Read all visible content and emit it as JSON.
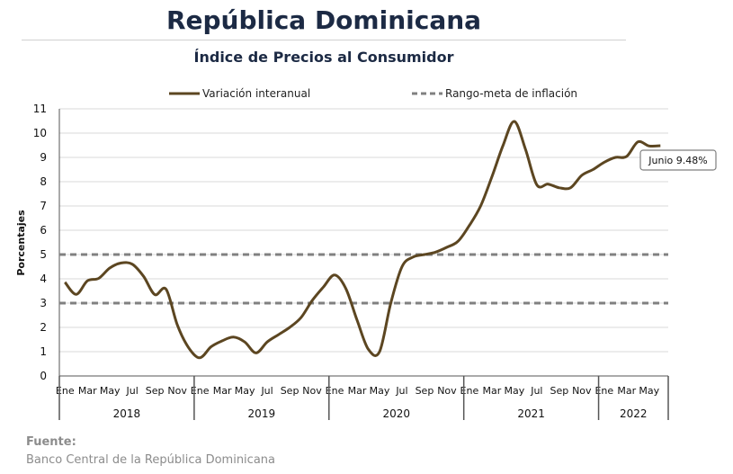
{
  "title": "República Dominicana",
  "subtitle": "Índice de Precios al Consumidor",
  "source_label": "Fuente:",
  "source_text": "Banco Central de la República Dominicana",
  "colors": {
    "line": "#5c4621",
    "target": "#808080",
    "grid": "#d9d9d9",
    "title": "#1c2a44"
  },
  "chart_data": {
    "type": "line",
    "ylabel": "Porcentajes",
    "ylim": [
      0,
      11
    ],
    "yticks": [
      0,
      1,
      2,
      3,
      4,
      5,
      6,
      7,
      8,
      9,
      10,
      11
    ],
    "grid": true,
    "legend_position": "top",
    "month_labels": [
      "Ene",
      "Mar",
      "May",
      "Jul",
      "Sep",
      "Nov"
    ],
    "years": [
      "2018",
      "2019",
      "2020",
      "2021",
      "2022"
    ],
    "series": [
      {
        "name": "Variación interanual",
        "values": [
          3.86,
          3.36,
          3.92,
          4.02,
          4.45,
          4.65,
          4.6,
          4.1,
          3.35,
          3.57,
          2.1,
          1.17,
          0.75,
          1.2,
          1.45,
          1.6,
          1.4,
          0.95,
          1.4,
          1.7,
          2.0,
          2.4,
          3.1,
          3.66,
          4.16,
          3.6,
          2.3,
          1.1,
          1.0,
          3.0,
          4.5,
          4.9,
          5.0,
          5.1,
          5.3,
          5.55,
          6.2,
          7.0,
          8.2,
          9.5,
          10.48,
          9.32,
          7.87,
          7.9,
          7.75,
          7.75,
          8.26,
          8.5,
          8.8,
          9.0,
          9.04,
          9.64,
          9.47,
          9.48
        ]
      },
      {
        "name": "Rango-meta de inflación",
        "values": [
          3,
          5
        ]
      }
    ],
    "annotation": "Junio 9.48%"
  }
}
